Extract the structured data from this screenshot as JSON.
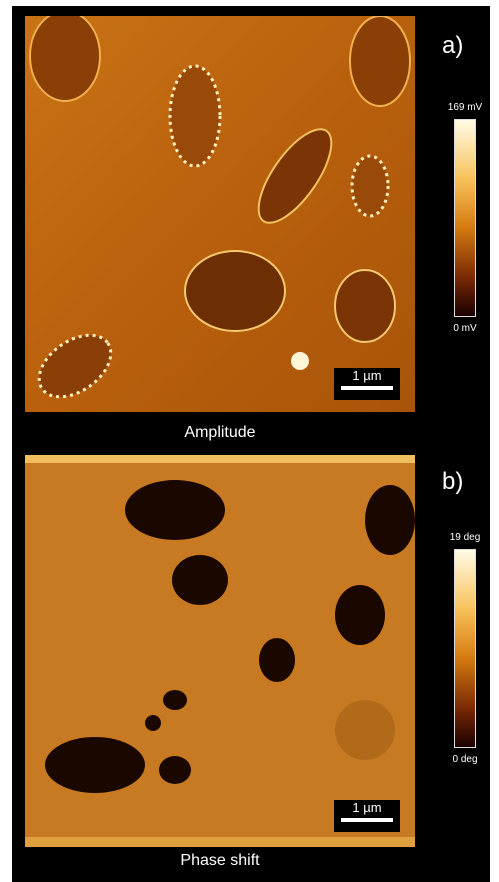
{
  "panels": [
    {
      "label": "a)",
      "caption": "Amplitude",
      "colorbar_max": "169 mV",
      "colorbar_min": "0 mV",
      "scale_bar": "1 µm"
    },
    {
      "label": "b)",
      "caption": "Phase shift",
      "colorbar_max": "19 deg",
      "colorbar_min": "0 deg",
      "scale_bar": "1 µm"
    }
  ]
}
